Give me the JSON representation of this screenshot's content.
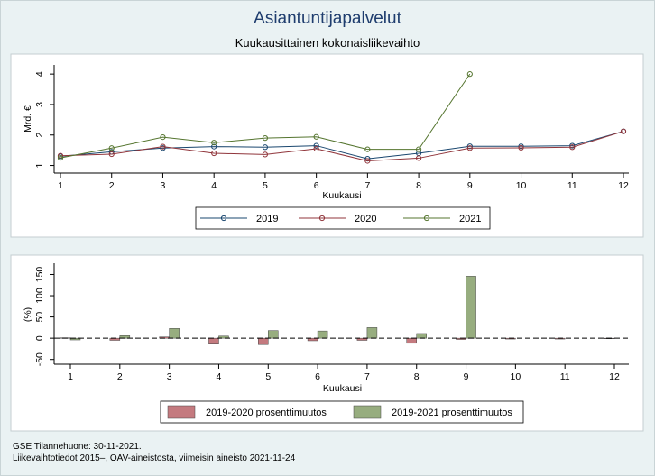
{
  "title": "Asiantuntijapalvelut",
  "subtitle": "Kuukausittainen kokonaisliikevaihto",
  "footer": {
    "line1": "GSE Tilannehuone: 30-11-2021.",
    "line2": "Liikevaihtotiedot 2015–, OAV-aineistosta, viimeisin aineisto 2021-11-24"
  },
  "colors": {
    "s2019": "#1a476f",
    "s2020": "#90353b",
    "s2021": "#55752f",
    "bar2020": "#c47a7f",
    "bar2021": "#97ad7f"
  },
  "chart_data": [
    {
      "type": "line",
      "title": "",
      "xlabel": "Kuukausi",
      "ylabel": "Mrd. €",
      "x": [
        1,
        2,
        3,
        4,
        5,
        6,
        7,
        8,
        9,
        10,
        11,
        12
      ],
      "xticks": [
        "1",
        "2",
        "3",
        "4",
        "5",
        "6",
        "7",
        "8",
        "9",
        "10",
        "11",
        "12"
      ],
      "yticks": [
        "1",
        "2",
        "3",
        "4"
      ],
      "ylim": [
        0.75,
        4.3
      ],
      "legend_position": "bottom",
      "series": [
        {
          "name": "2019",
          "key": "s2019",
          "values": [
            1.3,
            1.45,
            1.57,
            1.62,
            1.6,
            1.65,
            1.22,
            1.4,
            1.63,
            1.63,
            1.65,
            2.12
          ]
        },
        {
          "name": "2020",
          "key": "s2020",
          "values": [
            1.32,
            1.37,
            1.62,
            1.4,
            1.36,
            1.55,
            1.15,
            1.24,
            1.57,
            1.58,
            1.6,
            2.12
          ]
        },
        {
          "name": "2021",
          "key": "s2021",
          "values": [
            1.25,
            1.57,
            1.93,
            1.75,
            1.9,
            1.94,
            1.53,
            1.53,
            4.0,
            null,
            null,
            null
          ]
        }
      ]
    },
    {
      "type": "bar",
      "title": "",
      "xlabel": "Kuukausi",
      "ylabel": "(%)",
      "categories": [
        "1",
        "2",
        "3",
        "4",
        "5",
        "6",
        "7",
        "8",
        "9",
        "10",
        "11",
        "12"
      ],
      "yticks": [
        "-50",
        "0",
        "50",
        "100",
        "150"
      ],
      "ylim": [
        -57,
        168
      ],
      "legend_position": "bottom",
      "series": [
        {
          "name": "2019-2020 prosenttimuutos",
          "key": "bar2020",
          "values": [
            1,
            -5,
            3,
            -14,
            -15,
            -6,
            -5,
            -12,
            -3,
            -2,
            -2,
            0
          ]
        },
        {
          "name": "2019-2021 prosenttimuutos",
          "key": "bar2021",
          "values": [
            -4,
            6,
            23,
            5,
            18,
            17,
            25,
            11,
            146,
            null,
            null,
            null
          ]
        }
      ]
    }
  ]
}
